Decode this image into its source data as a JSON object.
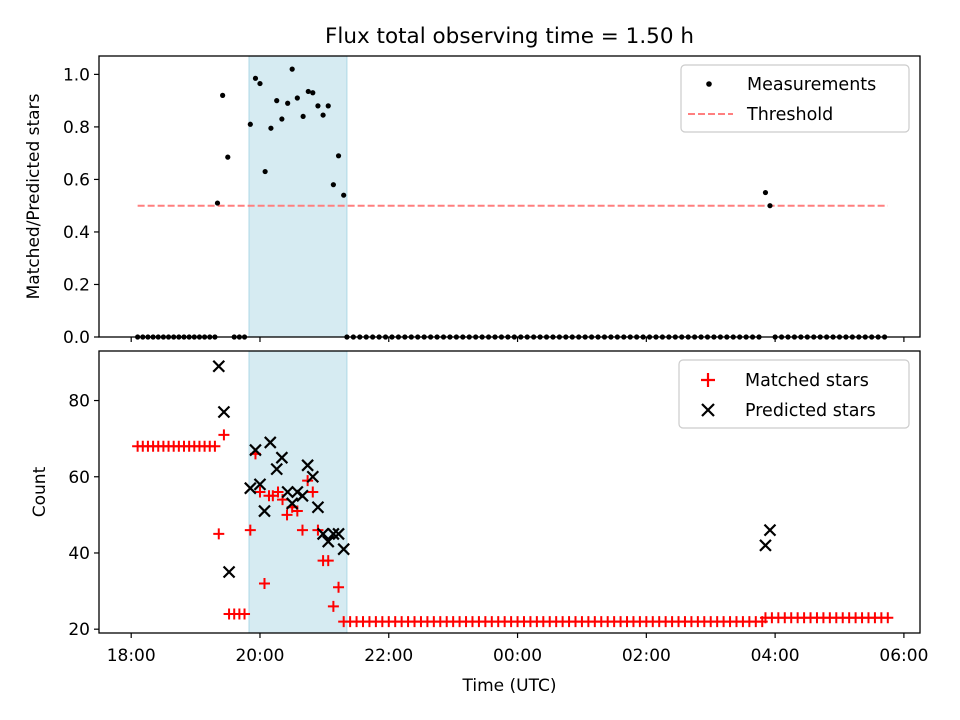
{
  "chart_data": {
    "type": "scatter",
    "title": "Flux total observing time = 1.50 h",
    "xlabel": "Time (UTC)",
    "x_unit": "hours since 18:00 UTC",
    "xlim": [
      -0.5,
      12.25
    ],
    "x_ticks": [
      {
        "value": 0,
        "label": "18:00"
      },
      {
        "value": 2,
        "label": "20:00"
      },
      {
        "value": 4,
        "label": "22:00"
      },
      {
        "value": 6,
        "label": "00:00"
      },
      {
        "value": 8,
        "label": "02:00"
      },
      {
        "value": 10,
        "label": "04:00"
      },
      {
        "value": 12,
        "label": "06:00"
      }
    ],
    "highlight_span": {
      "x_start": 1.83,
      "x_end": 3.35,
      "color": "#add8e6"
    },
    "colors": {
      "measurements": "#000000",
      "threshold": "#ff7f7f",
      "matched": "#ff0000",
      "predicted": "#000000",
      "span": "#add8e6"
    },
    "top_panel": {
      "ylabel": "Matched/Predicted stars",
      "ylim": [
        0,
        1.07
      ],
      "y_ticks": [
        0.0,
        0.2,
        0.4,
        0.6,
        0.8,
        1.0
      ],
      "y_tick_labels": [
        "0.0",
        "0.2",
        "0.4",
        "0.6",
        "0.8",
        "1.0"
      ],
      "legend_position": "top-right",
      "legend": [
        "Measurements",
        "Threshold"
      ],
      "threshold": {
        "value": 0.5,
        "x_start": 0.1,
        "x_end": 11.75
      },
      "measurement_points": [
        [
          1.34,
          0.51
        ],
        [
          1.42,
          0.92
        ],
        [
          1.5,
          0.685
        ],
        [
          1.85,
          0.81
        ],
        [
          1.93,
          0.985
        ],
        [
          2.0,
          0.965
        ],
        [
          2.08,
          0.63
        ],
        [
          2.17,
          0.795
        ],
        [
          2.26,
          0.9
        ],
        [
          2.34,
          0.83
        ],
        [
          2.43,
          0.89
        ],
        [
          2.5,
          1.02
        ],
        [
          2.58,
          0.91
        ],
        [
          2.67,
          0.84
        ],
        [
          2.75,
          0.935
        ],
        [
          2.82,
          0.93
        ],
        [
          2.9,
          0.88
        ],
        [
          2.98,
          0.845
        ],
        [
          3.06,
          0.88
        ],
        [
          3.14,
          0.58
        ],
        [
          3.22,
          0.69
        ],
        [
          3.3,
          0.54
        ],
        [
          9.85,
          0.55
        ],
        [
          9.92,
          0.5
        ]
      ],
      "zero_segments": [
        {
          "x_start": 0.1,
          "x_end": 1.3,
          "step": 0.08
        },
        {
          "x_start": 1.6,
          "x_end": 1.8,
          "step": 0.08
        },
        {
          "x_start": 3.35,
          "x_end": 9.8,
          "step": 0.1
        },
        {
          "x_start": 10.0,
          "x_end": 11.75,
          "step": 0.1
        }
      ]
    },
    "bottom_panel": {
      "ylabel": "Count",
      "ylim": [
        19,
        93
      ],
      "y_ticks": [
        20,
        40,
        60,
        80
      ],
      "y_tick_labels": [
        "20",
        "40",
        "60",
        "80"
      ],
      "legend_position": "top-right",
      "legend": [
        "Matched stars",
        "Predicted stars"
      ],
      "matched_series": [
        {
          "x_start": 0.1,
          "x_end": 1.3,
          "step": 0.08,
          "value": 68
        },
        {
          "x_start": 3.3,
          "x_end": 9.8,
          "step": 0.1,
          "value": 22
        },
        {
          "x_start": 9.85,
          "x_end": 11.75,
          "step": 0.1,
          "value": 23
        }
      ],
      "matched_points": [
        [
          1.36,
          45
        ],
        [
          1.44,
          71
        ],
        [
          1.52,
          24
        ],
        [
          1.6,
          24
        ],
        [
          1.68,
          24
        ],
        [
          1.76,
          24
        ],
        [
          1.85,
          46
        ],
        [
          1.93,
          66
        ],
        [
          2.0,
          56
        ],
        [
          2.07,
          32
        ],
        [
          2.14,
          55
        ],
        [
          2.2,
          55
        ],
        [
          2.28,
          56
        ],
        [
          2.35,
          54
        ],
        [
          2.42,
          50
        ],
        [
          2.5,
          52
        ],
        [
          2.58,
          51
        ],
        [
          2.66,
          46
        ],
        [
          2.74,
          59
        ],
        [
          2.82,
          56
        ],
        [
          2.9,
          46
        ],
        [
          2.98,
          38
        ],
        [
          3.06,
          38
        ],
        [
          3.14,
          26
        ],
        [
          3.22,
          31
        ]
      ],
      "predicted_points": [
        [
          1.36,
          89
        ],
        [
          1.44,
          77
        ],
        [
          1.52,
          35
        ],
        [
          1.85,
          57
        ],
        [
          1.93,
          67
        ],
        [
          2.0,
          58
        ],
        [
          2.07,
          51
        ],
        [
          2.16,
          69
        ],
        [
          2.26,
          62
        ],
        [
          2.34,
          65
        ],
        [
          2.43,
          56
        ],
        [
          2.5,
          53
        ],
        [
          2.58,
          56
        ],
        [
          2.66,
          55
        ],
        [
          2.74,
          63
        ],
        [
          2.82,
          60
        ],
        [
          2.9,
          52
        ],
        [
          2.98,
          45
        ],
        [
          3.06,
          43
        ],
        [
          3.14,
          45
        ],
        [
          3.22,
          45
        ],
        [
          3.3,
          41
        ],
        [
          9.85,
          42
        ],
        [
          9.92,
          46
        ]
      ]
    }
  }
}
